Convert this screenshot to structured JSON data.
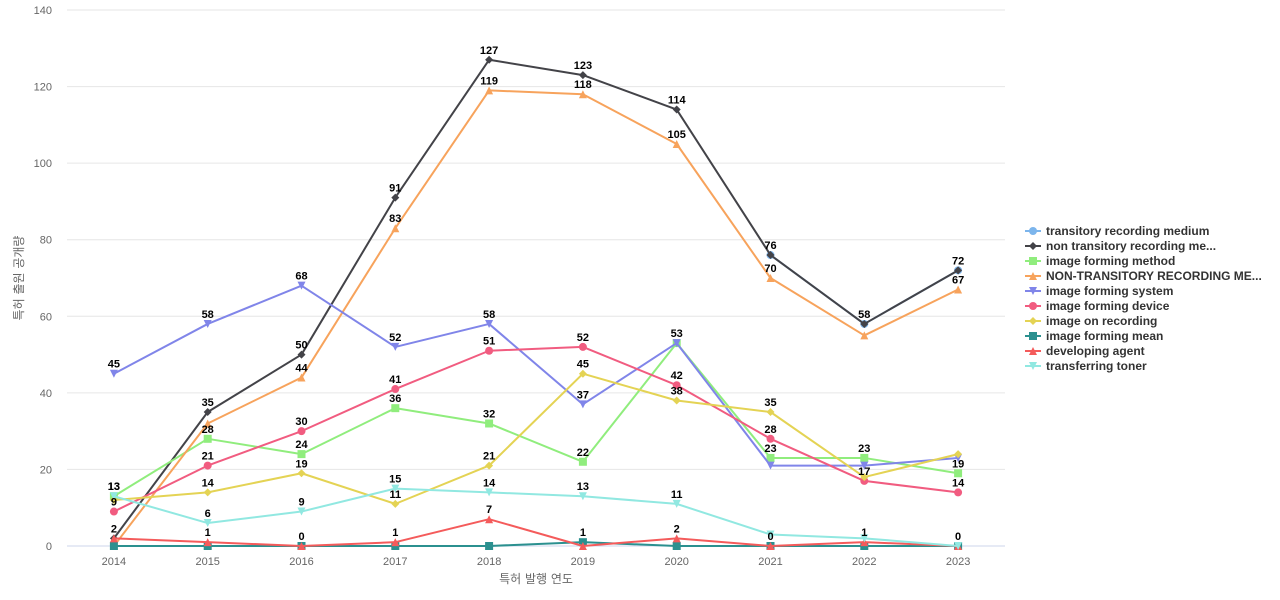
{
  "chart_data": {
    "type": "line",
    "title": "",
    "xlabel": "특허 발행 연도",
    "ylabel": "특허 출원 공개량",
    "ylim": [
      0,
      140
    ],
    "yticks": [
      0,
      20,
      40,
      60,
      80,
      100,
      120,
      140
    ],
    "grid": true,
    "legend_position": "right",
    "categories": [
      "2014",
      "2015",
      "2016",
      "2017",
      "2018",
      "2019",
      "2020",
      "2021",
      "2022",
      "2023"
    ],
    "series": [
      {
        "name": "transitory recording medium",
        "color": "#7cb5ec",
        "marker": "circle",
        "values": [
          null,
          null,
          null,
          null,
          null,
          null,
          null,
          76,
          58,
          72
        ],
        "labels": false
      },
      {
        "name": "non transitory recording me...",
        "color": "#434348",
        "marker": "diamond",
        "values": [
          2,
          35,
          50,
          91,
          127,
          123,
          114,
          76,
          58,
          72
        ],
        "labels": true
      },
      {
        "name": "image forming method",
        "color": "#90ed7d",
        "marker": "square",
        "values": [
          13,
          28,
          24,
          36,
          32,
          22,
          53,
          23,
          23,
          19
        ],
        "labels": true
      },
      {
        "name": "NON-TRANSITORY RECORDING ME...",
        "color": "#f7a35c",
        "marker": "triangle",
        "values": [
          0,
          32,
          44,
          83,
          119,
          118,
          105,
          70,
          55,
          67
        ],
        "labels": [
          false,
          false,
          true,
          true,
          true,
          true,
          true,
          true,
          false,
          true
        ]
      },
      {
        "name": "image forming system",
        "color": "#8085e9",
        "marker": "triangle-down",
        "values": [
          45,
          58,
          68,
          52,
          58,
          37,
          53,
          21,
          21,
          23
        ],
        "labels": [
          true,
          true,
          true,
          true,
          true,
          true,
          false,
          false,
          false,
          false
        ]
      },
      {
        "name": "image forming device",
        "color": "#f15c80",
        "marker": "circle",
        "values": [
          9,
          21,
          30,
          41,
          51,
          52,
          42,
          28,
          17,
          14
        ],
        "labels": true
      },
      {
        "name": "image on recording",
        "color": "#e4d354",
        "marker": "diamond",
        "values": [
          12,
          14,
          19,
          11,
          21,
          45,
          38,
          35,
          18,
          24
        ],
        "labels": [
          false,
          true,
          true,
          true,
          true,
          true,
          true,
          true,
          false,
          false
        ]
      },
      {
        "name": "image forming mean",
        "color": "#2b908f",
        "marker": "square",
        "values": [
          0,
          0,
          0,
          0,
          0,
          1,
          0,
          0,
          0,
          0
        ],
        "labels": [
          false,
          false,
          false,
          false,
          false,
          true,
          false,
          false,
          false,
          false
        ]
      },
      {
        "name": "developing agent",
        "color": "#f45b5b",
        "marker": "triangle",
        "values": [
          2,
          1,
          0,
          1,
          7,
          0,
          2,
          0,
          1,
          0
        ],
        "labels": [
          false,
          true,
          true,
          true,
          true,
          false,
          true,
          true,
          true,
          true
        ]
      },
      {
        "name": "transferring toner",
        "color": "#91e8e1",
        "marker": "triangle-down",
        "values": [
          13,
          6,
          9,
          15,
          14,
          13,
          11,
          3,
          2,
          0
        ],
        "labels": [
          true,
          true,
          true,
          true,
          true,
          true,
          true,
          false,
          false,
          false
        ]
      }
    ]
  }
}
